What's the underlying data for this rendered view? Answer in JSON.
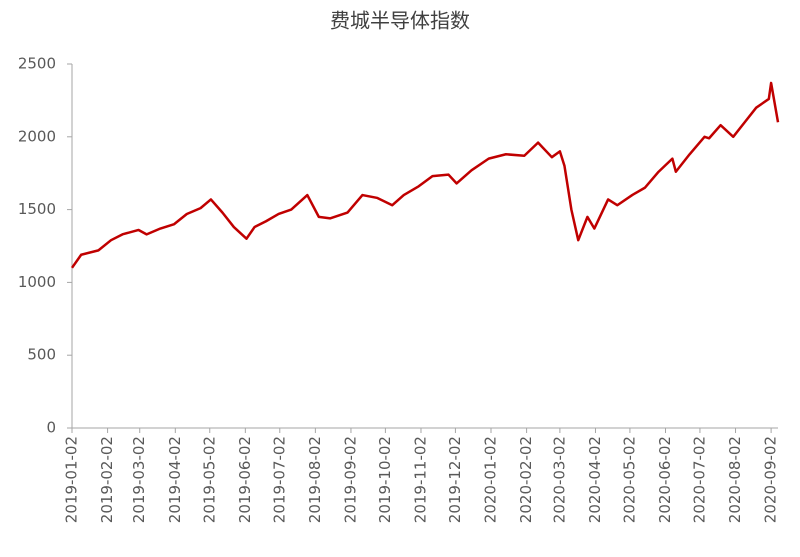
{
  "chart_data": {
    "type": "line",
    "title": "费城半导体指数",
    "x": [
      "2019-01-02",
      "2019-01-10",
      "2019-01-25",
      "2019-02-05",
      "2019-02-15",
      "2019-03-01",
      "2019-03-08",
      "2019-03-20",
      "2019-04-01",
      "2019-04-12",
      "2019-04-24",
      "2019-05-03",
      "2019-05-13",
      "2019-05-23",
      "2019-06-03",
      "2019-06-10",
      "2019-06-20",
      "2019-07-01",
      "2019-07-12",
      "2019-07-26",
      "2019-08-05",
      "2019-08-15",
      "2019-08-30",
      "2019-09-12",
      "2019-09-25",
      "2019-10-08",
      "2019-10-18",
      "2019-10-31",
      "2019-11-12",
      "2019-11-26",
      "2019-12-03",
      "2019-12-16",
      "2019-12-31",
      "2020-01-15",
      "2020-01-31",
      "2020-02-12",
      "2020-02-24",
      "2020-03-02",
      "2020-03-06",
      "2020-03-12",
      "2020-03-18",
      "2020-03-26",
      "2020-04-01",
      "2020-04-13",
      "2020-04-21",
      "2020-05-04",
      "2020-05-15",
      "2020-05-27",
      "2020-06-08",
      "2020-06-11",
      "2020-06-23",
      "2020-07-06",
      "2020-07-10",
      "2020-07-20",
      "2020-07-31",
      "2020-08-10",
      "2020-08-20",
      "2020-08-31",
      "2020-09-02",
      "2020-09-08"
    ],
    "series": [
      {
        "name": "费城半导体指数",
        "color": "#c00000",
        "values": [
          1100,
          1190,
          1220,
          1290,
          1330,
          1360,
          1330,
          1370,
          1400,
          1470,
          1510,
          1570,
          1480,
          1380,
          1300,
          1380,
          1420,
          1470,
          1500,
          1600,
          1450,
          1440,
          1480,
          1600,
          1580,
          1530,
          1600,
          1660,
          1730,
          1740,
          1680,
          1770,
          1850,
          1880,
          1870,
          1960,
          1860,
          1900,
          1800,
          1500,
          1290,
          1450,
          1370,
          1570,
          1530,
          1600,
          1650,
          1760,
          1850,
          1760,
          1880,
          2000,
          1990,
          2080,
          2000,
          2100,
          2200,
          2260,
          2370,
          2100
        ]
      }
    ],
    "xlim": [
      "2019-01-02",
      "2020-09-08"
    ],
    "xticks": [
      "2019-01-02",
      "2019-02-02",
      "2019-03-02",
      "2019-04-02",
      "2019-05-02",
      "2019-06-02",
      "2019-07-02",
      "2019-08-02",
      "2019-09-02",
      "2019-10-02",
      "2019-11-02",
      "2019-12-02",
      "2020-01-02",
      "2020-02-02",
      "2020-03-02",
      "2020-04-02",
      "2020-05-02",
      "2020-06-02",
      "2020-07-02",
      "2020-08-02",
      "2020-09-02"
    ],
    "ylim": [
      0,
      2500
    ],
    "yticks": [
      0,
      500,
      1000,
      1500,
      2000,
      2500
    ],
    "grid": false
  }
}
